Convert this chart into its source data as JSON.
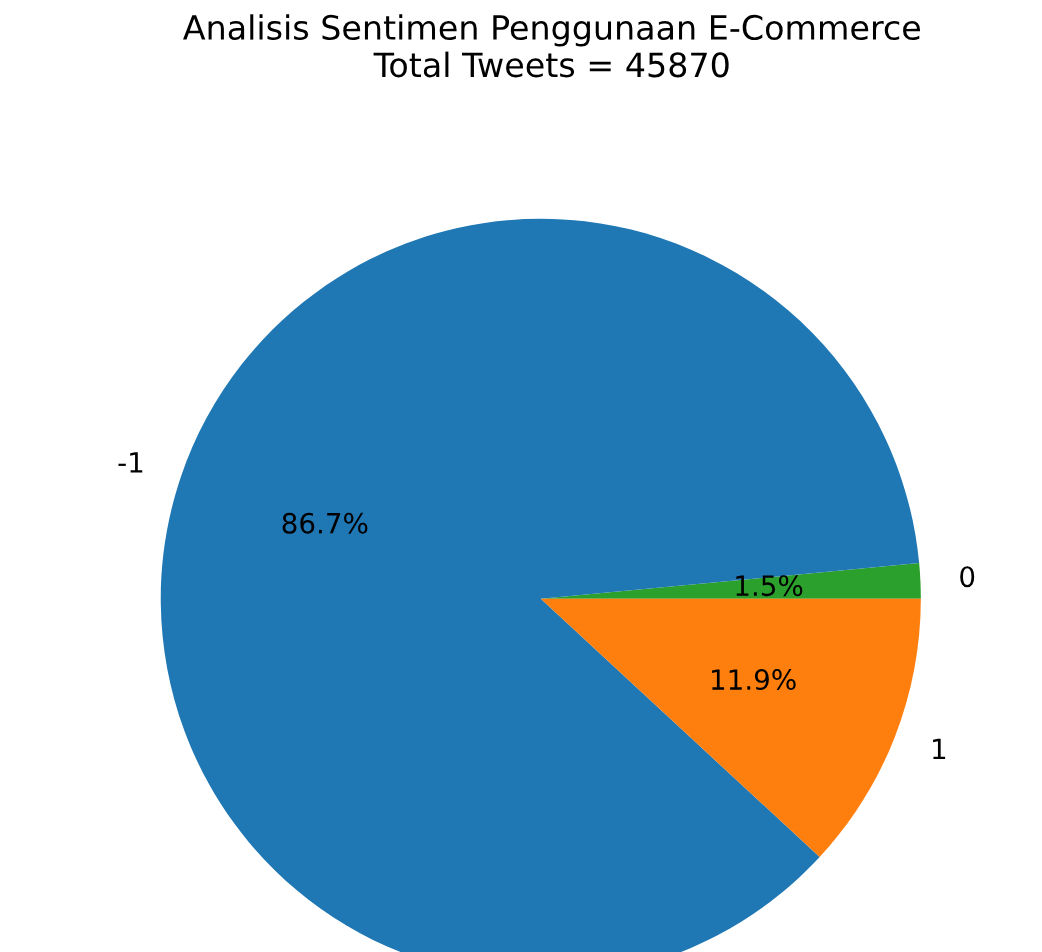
{
  "chart_data": {
    "type": "pie",
    "title": "Analisis Sentimen Penggunaan E-Commerce",
    "subtitle": "Total Tweets = 45870",
    "categories": [
      "0",
      "-1",
      "1"
    ],
    "values": [
      1.5,
      86.7,
      11.9
    ],
    "value_labels": [
      "1.5%",
      "86.7%",
      "11.9%"
    ],
    "colors": [
      "#2ca02c",
      "#1f77b4",
      "#ff7f0e"
    ]
  }
}
